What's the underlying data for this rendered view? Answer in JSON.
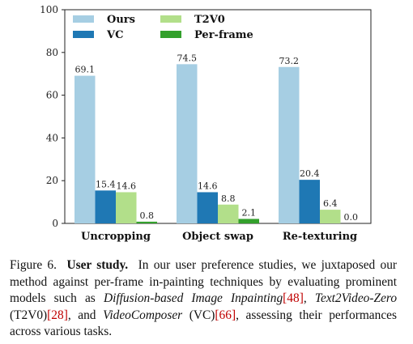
{
  "chart_data": {
    "type": "bar",
    "categories": [
      "Uncropping",
      "Object swap",
      "Re-texturing"
    ],
    "series": [
      {
        "name": "Ours",
        "values": [
          69.1,
          74.5,
          73.2
        ],
        "color": "#a6cee3"
      },
      {
        "name": "VC",
        "values": [
          15.4,
          14.6,
          20.4
        ],
        "color": "#1f78b4"
      },
      {
        "name": "T2V0",
        "values": [
          14.6,
          8.8,
          6.4
        ],
        "color": "#b2df8a"
      },
      {
        "name": "Per-frame",
        "values": [
          0.8,
          2.1,
          0.0
        ],
        "color": "#33a02c"
      }
    ],
    "ylim": [
      0,
      100
    ],
    "yticks": [
      0,
      20,
      40,
      60,
      80,
      100
    ],
    "xlabel": "",
    "ylabel": "",
    "legend_position": "top-left",
    "grid": false
  },
  "caption": {
    "label": "Figure 6.",
    "title": "User study.",
    "t1": "In our user preference studies, we juxtaposed our method against per-frame in-painting techniques by evaluating prominent models such as",
    "m1": "Diffusion-based Image Inpainting",
    "r1": "[48]",
    "t2": ",",
    "m2": "Text2Video-Zero",
    "t3": "(T2V0)",
    "r2": "[28]",
    "t4": ", and",
    "m3": "VideoComposer",
    "t5": "(VC)",
    "r3": "[66]",
    "t6": ", assessing their performances across various tasks."
  }
}
